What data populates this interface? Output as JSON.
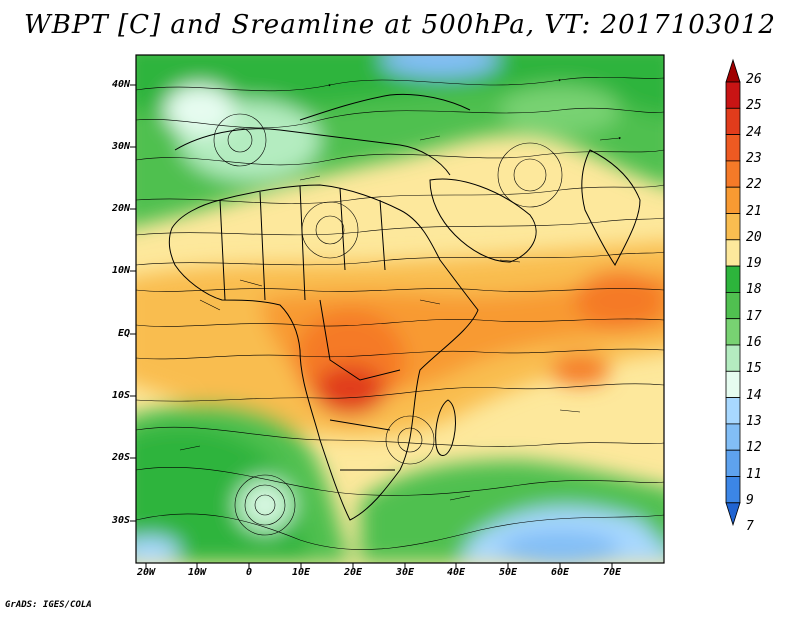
{
  "title": "WBPT [C] and Sreamline at 500hPa, VT: 2017103012",
  "footer": "GrADS: IGES/COLA",
  "map": {
    "lat_labels": [
      "40N",
      "30N",
      "20N",
      "10N",
      "EQ",
      "10S",
      "20S",
      "30S"
    ],
    "lon_labels": [
      "20W",
      "10W",
      "0",
      "10E",
      "20E",
      "30E",
      "40E",
      "50E",
      "60E",
      "70E"
    ],
    "lon_range": [
      -22,
      80
    ],
    "lat_range": [
      -36,
      45
    ]
  },
  "colorbar": {
    "labels": [
      "26",
      "25",
      "24",
      "23",
      "22",
      "21",
      "20",
      "19",
      "18",
      "17",
      "16",
      "15",
      "14",
      "13",
      "12",
      "11",
      "9",
      "7"
    ],
    "colors": [
      "#a00000",
      "#c81414",
      "#e13c1c",
      "#ee5a22",
      "#f57a28",
      "#f89a32",
      "#f9bd50",
      "#fde89c",
      "#2db43c",
      "#50c050",
      "#78d272",
      "#b4ecc0",
      "#e6fcf0",
      "#a8d8ff",
      "#82bef6",
      "#5ea2ee",
      "#3c86e6",
      "#2064d2"
    ]
  },
  "colors": {
    "frame": "#000000",
    "streamline": "#000000",
    "background": "#ffffff"
  }
}
